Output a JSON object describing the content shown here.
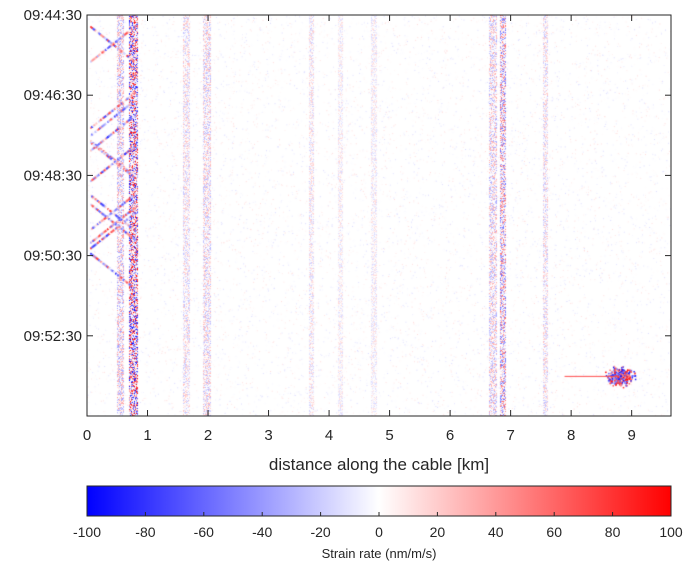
{
  "chart_data": [
    {
      "type": "heatmap",
      "title": "",
      "xlabel": "distance along the cable [km]",
      "ylabel": "",
      "xlim": [
        0,
        9.65
      ],
      "ylim": [
        "09:44:30",
        "09:54:30"
      ],
      "x_ticks": [
        "0",
        "1",
        "2",
        "3",
        "4",
        "5",
        "6",
        "7",
        "8",
        "9"
      ],
      "y_ticks": [
        "09:44:30",
        "09:46:30",
        "09:48:30",
        "09:50:30",
        "09:52:30"
      ],
      "grid": false,
      "colormap": "blue-white-red",
      "value_range": [
        -100,
        100
      ],
      "features": [
        {
          "kind": "strong vertical band",
          "x_km": [
            0.7,
            0.82
          ],
          "amplitude": 100
        },
        {
          "kind": "vertical band",
          "x_km": [
            0.5,
            0.58
          ],
          "amplitude": 40
        },
        {
          "kind": "vertical band",
          "x_km": [
            1.6,
            1.68
          ],
          "amplitude": 25
        },
        {
          "kind": "vertical band",
          "x_km": [
            1.93,
            2.02
          ],
          "amplitude": 30
        },
        {
          "kind": "vertical band",
          "x_km": [
            3.67,
            3.73
          ],
          "amplitude": 20
        },
        {
          "kind": "vertical band",
          "x_km": [
            4.15,
            4.2
          ],
          "amplitude": 15
        },
        {
          "kind": "vertical band",
          "x_km": [
            4.7,
            4.76
          ],
          "amplitude": 15
        },
        {
          "kind": "vertical band",
          "x_km": [
            6.65,
            6.75
          ],
          "amplitude": 35
        },
        {
          "kind": "vertical band",
          "x_km": [
            6.83,
            6.9
          ],
          "amplitude": 60
        },
        {
          "kind": "vertical band",
          "x_km": [
            7.55,
            7.6
          ],
          "amplitude": 25
        },
        {
          "kind": "diagonal arrivals",
          "x_km": [
            0.05,
            0.8
          ],
          "time": [
            "09:44:30",
            "09:51:30"
          ]
        },
        {
          "kind": "localized burst",
          "x_km": 8.8,
          "time": "09:53:30",
          "amplitude": 100
        }
      ]
    },
    {
      "type": "heatmap",
      "title": "",
      "xlabel": "Strain rate (nm/m/s)",
      "colormap": "blue-white-red",
      "xlim": [
        -100,
        100
      ],
      "x_ticks": [
        "-100",
        "-80",
        "-60",
        "-40",
        "-20",
        "0",
        "20",
        "40",
        "60",
        "80",
        "100"
      ],
      "colors": {
        "min": "#0000ff",
        "mid": "#ffffff",
        "max": "#ff0000"
      }
    }
  ]
}
